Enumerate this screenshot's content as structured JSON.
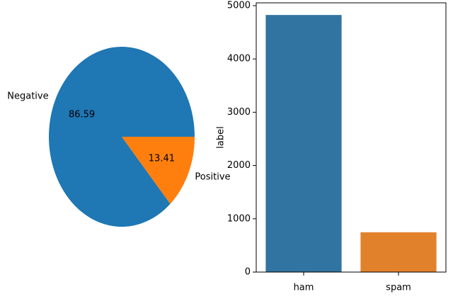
{
  "chart_data": [
    {
      "type": "pie",
      "labels": [
        "Negative",
        "Positive"
      ],
      "values": [
        86.59,
        13.41
      ],
      "colors": [
        "#1f77b4",
        "#ff7f0e"
      ]
    },
    {
      "type": "bar",
      "categories": [
        "ham",
        "spam"
      ],
      "values": [
        4825,
        747
      ],
      "colors": [
        "#3274a1",
        "#e1812c"
      ],
      "ylabel": "label",
      "ylim": [
        0,
        5053
      ],
      "yticks": [
        0,
        1000,
        2000,
        3000,
        4000,
        5000
      ]
    }
  ]
}
